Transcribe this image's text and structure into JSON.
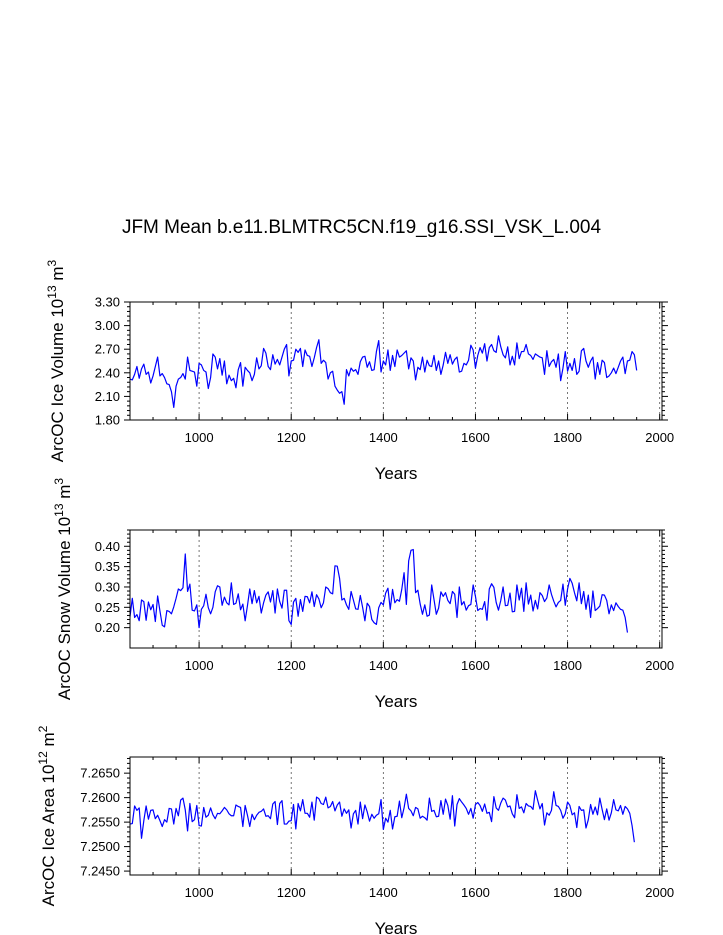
{
  "title": "JFM Mean b.e11.BLMTRC5CN.f19_g16.SSI_VSK_L.004",
  "colors": {
    "series": "#0000ff",
    "axis": "#000000",
    "grid": "#555555",
    "background": "#ffffff"
  },
  "chart_data": [
    {
      "type": "line",
      "id": "ice-volume",
      "title": "",
      "xlabel": "Years",
      "ylabel": "ArcOC Ice Volume 10^13 m^3",
      "ylabel_parts": {
        "base": "ArcOC Ice Volume 10",
        "sup1": "13",
        "mid": " m",
        "sup2": "3"
      },
      "xlim": [
        850,
        2005
      ],
      "ylim": [
        1.8,
        3.3
      ],
      "xticks": [
        1000,
        1200,
        1400,
        1600,
        1800,
        2000
      ],
      "xtick_labels": [
        "1000",
        "1200",
        "1400",
        "1600",
        "1800",
        "2000"
      ],
      "yticks": [
        1.8,
        2.1,
        2.4,
        2.7,
        3.0,
        3.3
      ],
      "ytick_labels": [
        "1.80",
        "2.10",
        "2.40",
        "2.70",
        "3.00",
        "3.30"
      ],
      "grid": "vertical dashed at major x ticks",
      "series": [
        {
          "name": "ArcOC Ice Volume",
          "step": 5,
          "x_start": 850,
          "values": [
            2.32,
            2.31,
            2.38,
            2.48,
            2.33,
            2.45,
            2.51,
            2.38,
            2.41,
            2.27,
            2.36,
            2.48,
            2.6,
            2.36,
            2.39,
            2.34,
            2.26,
            2.25,
            2.16,
            1.96,
            2.23,
            2.32,
            2.34,
            2.39,
            2.32,
            2.6,
            2.43,
            2.42,
            2.41,
            2.23,
            2.52,
            2.5,
            2.43,
            2.41,
            2.2,
            2.34,
            2.64,
            2.6,
            2.45,
            2.58,
            2.37,
            2.55,
            2.26,
            2.37,
            2.3,
            2.33,
            2.21,
            2.44,
            2.53,
            2.23,
            2.47,
            2.43,
            2.4,
            2.3,
            2.38,
            2.59,
            2.45,
            2.49,
            2.71,
            2.65,
            2.48,
            2.44,
            2.63,
            2.51,
            2.57,
            2.5,
            2.6,
            2.7,
            2.76,
            2.36,
            2.55,
            2.56,
            2.7,
            2.66,
            2.71,
            2.48,
            2.69,
            2.62,
            2.61,
            2.48,
            2.59,
            2.72,
            2.82,
            2.52,
            2.56,
            2.53,
            2.32,
            2.4,
            2.42,
            2.23,
            2.18,
            2.14,
            2.16,
            2.0,
            2.44,
            2.36,
            2.46,
            2.42,
            2.44,
            2.38,
            2.54,
            2.6,
            2.61,
            2.47,
            2.54,
            2.43,
            2.44,
            2.67,
            2.81,
            2.41,
            2.55,
            2.5,
            2.69,
            2.43,
            2.62,
            2.48,
            2.69,
            2.6,
            2.62,
            2.65,
            2.68,
            2.45,
            2.59,
            2.55,
            2.31,
            2.47,
            2.44,
            2.6,
            2.41,
            2.56,
            2.49,
            2.48,
            2.62,
            2.43,
            2.55,
            2.38,
            2.5,
            2.66,
            2.52,
            2.63,
            2.51,
            2.57,
            2.6,
            2.41,
            2.42,
            2.52,
            2.5,
            2.56,
            2.75,
            2.69,
            2.46,
            2.62,
            2.72,
            2.65,
            2.77,
            2.55,
            2.72,
            2.76,
            2.68,
            2.66,
            2.87,
            2.73,
            2.63,
            2.59,
            2.73,
            2.5,
            2.61,
            2.5,
            2.78,
            2.58,
            2.67,
            2.67,
            2.76,
            2.64,
            2.62,
            2.57,
            2.64,
            2.62,
            2.6,
            2.59,
            2.38,
            2.68,
            2.48,
            2.54,
            2.57,
            2.47,
            2.64,
            2.3,
            2.46,
            2.67,
            2.42,
            2.52,
            2.43,
            2.58,
            2.38,
            2.42,
            2.68,
            2.71,
            2.55,
            2.47,
            2.55,
            2.6,
            2.32,
            2.53,
            2.38,
            2.56,
            2.53,
            2.34,
            2.36,
            2.4,
            2.46,
            2.39,
            2.47,
            2.55,
            2.6,
            2.39,
            2.55,
            2.56,
            2.67,
            2.63,
            2.43
          ]
        }
      ]
    },
    {
      "type": "line",
      "id": "snow-volume",
      "title": "",
      "xlabel": "Years",
      "ylabel": "ArcOC Snow Volume 10^13 m^3",
      "ylabel_parts": {
        "base": "ArcOC Snow Volume 10",
        "sup1": "13",
        "mid": " m",
        "sup2": "3"
      },
      "xlim": [
        850,
        2005
      ],
      "ylim": [
        0.15,
        0.44
      ],
      "xticks": [
        1000,
        1200,
        1400,
        1600,
        1800,
        2000
      ],
      "xtick_labels": [
        "1000",
        "1200",
        "1400",
        "1600",
        "1800",
        "2000"
      ],
      "yticks": [
        0.2,
        0.25,
        0.3,
        0.35,
        0.4
      ],
      "ytick_labels": [
        "0.20",
        "0.25",
        "0.30",
        "0.35",
        "0.40"
      ],
      "grid": "vertical dashed at major x ticks",
      "series": [
        {
          "name": "ArcOC Snow Volume",
          "step": 5,
          "x_start": 850,
          "values": [
            0.227,
            0.272,
            0.225,
            0.232,
            0.217,
            0.268,
            0.264,
            0.218,
            0.263,
            0.244,
            0.257,
            0.215,
            0.278,
            0.241,
            0.206,
            0.202,
            0.242,
            0.24,
            0.234,
            0.251,
            0.272,
            0.295,
            0.291,
            0.298,
            0.381,
            0.289,
            0.307,
            0.243,
            0.241,
            0.256,
            0.2,
            0.245,
            0.254,
            0.282,
            0.249,
            0.234,
            0.25,
            0.288,
            0.303,
            0.3,
            0.255,
            0.275,
            0.261,
            0.256,
            0.31,
            0.257,
            0.26,
            0.283,
            0.244,
            0.258,
            0.217,
            0.254,
            0.295,
            0.259,
            0.291,
            0.261,
            0.277,
            0.236,
            0.261,
            0.28,
            0.288,
            0.263,
            0.291,
            0.236,
            0.295,
            0.264,
            0.248,
            0.292,
            0.292,
            0.217,
            0.208,
            0.263,
            0.272,
            0.228,
            0.269,
            0.24,
            0.277,
            0.276,
            0.261,
            0.288,
            0.252,
            0.281,
            0.271,
            0.249,
            0.261,
            0.3,
            0.296,
            0.286,
            0.283,
            0.352,
            0.351,
            0.321,
            0.268,
            0.272,
            0.256,
            0.245,
            0.289,
            0.268,
            0.246,
            0.245,
            0.279,
            0.25,
            0.217,
            0.26,
            0.252,
            0.22,
            0.212,
            0.208,
            0.249,
            0.262,
            0.256,
            0.285,
            0.297,
            0.245,
            0.294,
            0.261,
            0.269,
            0.265,
            0.294,
            0.335,
            0.257,
            0.364,
            0.39,
            0.392,
            0.286,
            0.292,
            0.258,
            0.233,
            0.256,
            0.228,
            0.231,
            0.305,
            0.269,
            0.233,
            0.248,
            0.288,
            0.277,
            0.286,
            0.267,
            0.259,
            0.289,
            0.282,
            0.225,
            0.3,
            0.256,
            0.264,
            0.243,
            0.254,
            0.257,
            0.305,
            0.277,
            0.242,
            0.247,
            0.245,
            0.264,
            0.218,
            0.295,
            0.308,
            0.299,
            0.262,
            0.243,
            0.267,
            0.3,
            0.254,
            0.255,
            0.285,
            0.239,
            0.24,
            0.305,
            0.268,
            0.297,
            0.24,
            0.31,
            0.258,
            0.28,
            0.241,
            0.267,
            0.246,
            0.286,
            0.279,
            0.264,
            0.273,
            0.305,
            0.282,
            0.265,
            0.251,
            0.262,
            0.267,
            0.307,
            0.255,
            0.295,
            0.321,
            0.309,
            0.286,
            0.266,
            0.31,
            0.259,
            0.289,
            0.245,
            0.28,
            0.225,
            0.29,
            0.242,
            0.247,
            0.253,
            0.281,
            0.28,
            0.267,
            0.234,
            0.256,
            0.242,
            0.261,
            0.252,
            0.245,
            0.243,
            0.225,
            0.188
          ]
        }
      ]
    },
    {
      "type": "line",
      "id": "ice-area",
      "title": "",
      "xlabel": "Years",
      "ylabel": "ArcOC Ice Area 10^12 m^2",
      "ylabel_parts": {
        "base": "ArcOC Ice Area 10",
        "sup1": "12",
        "mid": " m",
        "sup2": "2"
      },
      "xlim": [
        850,
        2005
      ],
      "ylim": [
        7.2442,
        7.2683
      ],
      "xticks": [
        1000,
        1200,
        1400,
        1600,
        1800,
        2000
      ],
      "xtick_labels": [
        "1000",
        "1200",
        "1400",
        "1600",
        "1800",
        "2000"
      ],
      "yticks": [
        7.245,
        7.25,
        7.255,
        7.26,
        7.265
      ],
      "ytick_labels": [
        "7.2450",
        "7.2500",
        "7.2550",
        "7.2600",
        "7.2650"
      ],
      "grid": "vertical dashed at major x ticks",
      "series": [
        {
          "name": "ArcOC Ice Area",
          "step": 5,
          "x_start": 850,
          "values": [
            7.2546,
            7.2547,
            7.2583,
            7.2574,
            7.2579,
            7.2517,
            7.2553,
            7.2583,
            7.2556,
            7.2574,
            7.2575,
            7.2557,
            7.2564,
            7.2553,
            7.2541,
            7.2555,
            7.255,
            7.2578,
            7.2577,
            7.2546,
            7.2578,
            7.2563,
            7.2595,
            7.2599,
            7.2575,
            7.2532,
            7.2588,
            7.2551,
            7.2555,
            7.2584,
            7.2543,
            7.2542,
            7.258,
            7.256,
            7.2564,
            7.2579,
            7.2565,
            7.2557,
            7.2568,
            7.2567,
            7.2573,
            7.258,
            7.2575,
            7.2567,
            7.2563,
            7.2563,
            7.2585,
            7.2582,
            7.258,
            7.2541,
            7.2584,
            7.2564,
            7.2541,
            7.2566,
            7.2555,
            7.2564,
            7.257,
            7.2572,
            7.2577,
            7.2562,
            7.2563,
            7.2557,
            7.2587,
            7.2592,
            7.2545,
            7.2588,
            7.2594,
            7.2546,
            7.2546,
            7.2552,
            7.2553,
            7.2586,
            7.2536,
            7.2588,
            7.2573,
            7.2596,
            7.2568,
            7.2568,
            7.256,
            7.2591,
            7.2554,
            7.2601,
            7.2598,
            7.2588,
            7.2586,
            7.2601,
            7.2579,
            7.2582,
            7.2592,
            7.2573,
            7.2585,
            7.2591,
            7.2562,
            7.2577,
            7.2568,
            7.2575,
            7.2538,
            7.2567,
            7.2574,
            7.2546,
            7.2591,
            7.2557,
            7.2585,
            7.2571,
            7.2552,
            7.2566,
            7.2558,
            7.2564,
            7.2567,
            7.2596,
            7.2535,
            7.2558,
            7.255,
            7.2574,
            7.2536,
            7.2561,
            7.2562,
            7.2593,
            7.2559,
            7.2579,
            7.2607,
            7.2578,
            7.2573,
            7.2563,
            7.258,
            7.2577,
            7.2558,
            7.2562,
            7.2559,
            7.2554,
            7.2599,
            7.2572,
            7.2574,
            7.2561,
            7.2562,
            7.2594,
            7.2566,
            7.2597,
            7.2584,
            7.2556,
            7.2604,
            7.2542,
            7.2586,
            7.2598,
            7.2591,
            7.2585,
            7.2578,
            7.2566,
            7.2578,
            7.2558,
            7.2586,
            7.259,
            7.2584,
            7.2572,
            7.2587,
            7.2568,
            7.257,
            7.2551,
            7.2602,
            7.2579,
            7.2574,
            7.2589,
            7.2599,
            7.2595,
            7.2581,
            7.2583,
            7.2567,
            7.2559,
            7.2606,
            7.2578,
            7.2581,
            7.2569,
            7.2588,
            7.2583,
            7.2582,
            7.2576,
            7.2614,
            7.2595,
            7.2577,
            7.2588,
            7.2544,
            7.2569,
            7.2564,
            7.2574,
            7.2612,
            7.2584,
            7.2582,
            7.2574,
            7.2558,
            7.2567,
            7.2591,
            7.2584,
            7.2565,
            7.2569,
            7.2539,
            7.2582,
            7.2574,
            7.2575,
            7.2538,
            7.2555,
            7.2586,
            7.2566,
            7.2581,
            7.2565,
            7.2599,
            7.2576,
            7.2555,
            7.2577,
            7.2554,
            7.2569,
            7.2596,
            7.2575,
            7.2573,
            7.2584,
            7.2566,
            7.2582,
            7.2577,
            7.2568,
            7.2543,
            7.2509
          ]
        }
      ]
    }
  ]
}
